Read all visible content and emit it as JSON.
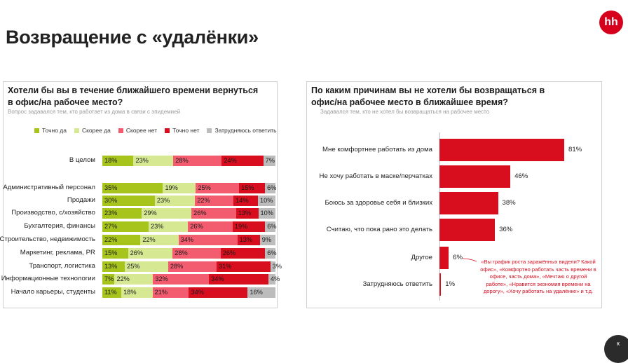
{
  "page": {
    "title": "Возвращение с «удалёнки»",
    "logo_text": "hh",
    "corner_text": "к"
  },
  "colors": {
    "accent": "#d6001c",
    "tochno_da": "#a6c41c",
    "skoree_da": "#d6e892",
    "skoree_net": "#f25c6e",
    "tochno_net": "#d80d1e",
    "zatrudnyayus": "#bcbcbc"
  },
  "chart_data": [
    {
      "type": "bar",
      "stacked": true,
      "orientation": "horizontal",
      "title": "Хотели бы вы в течение ближайшего времени вернуться в офис/на рабочее место?",
      "title_line1": "Хотели бы вы в течение ближайшего времени вернуться",
      "title_line2": "в офис/на рабочее место?",
      "subtitle": "Вопрос задавался тем, кто работает из дома в связи с эпидемией",
      "legend_position": "top",
      "categories": [
        "В целом",
        "Административный персонал",
        "Продажи",
        "Производство, с/хозяйство",
        "Бухгалтерия, финансы",
        "Строительство, недвижимость",
        "Маркетинг, реклама, PR",
        "Транспорт, логистика",
        "Информационные технологии",
        "Начало карьеры, студенты"
      ],
      "series": [
        {
          "name": "Точно да",
          "values": [
            18,
            35,
            30,
            23,
            27,
            22,
            15,
            13,
            7,
            11
          ],
          "labels": [
            "18%",
            "35%",
            "30%",
            "23%",
            "27%",
            "22%",
            "15%",
            "13%",
            "7%",
            "11%"
          ]
        },
        {
          "name": "Скорее да",
          "values": [
            23,
            19,
            23,
            29,
            23,
            22,
            26,
            25,
            22,
            18
          ],
          "labels": [
            "23%",
            "19%",
            "23%",
            "29%",
            "23%",
            "22%",
            "26%",
            "25%",
            "22%",
            "18%"
          ]
        },
        {
          "name": "Скорее нет",
          "values": [
            28,
            25,
            22,
            26,
            26,
            34,
            28,
            28,
            32,
            21
          ],
          "labels": [
            "28%",
            "25%",
            "22%",
            "26%",
            "26%",
            "34%",
            "28%",
            "28%",
            "32%",
            "21%"
          ]
        },
        {
          "name": "Точно нет",
          "values": [
            24,
            15,
            14,
            13,
            19,
            13,
            26,
            31,
            34,
            34
          ],
          "labels": [
            "24%",
            "15%",
            "14%",
            "13%",
            "19%",
            "13%",
            "26%",
            "31%",
            "34%",
            "34%"
          ]
        },
        {
          "name": "Затрудняюсь ответить",
          "values": [
            7,
            6,
            10,
            10,
            6,
            9,
            6,
            3,
            4,
            16
          ],
          "labels": [
            "7%",
            "6%",
            "10%",
            "10%",
            "6%",
            "9%",
            "6%",
            "3%",
            "4%",
            "16%"
          ]
        }
      ]
    },
    {
      "type": "bar",
      "orientation": "horizontal",
      "title": "По каким причинам вы не хотели бы возвращаться в офис/на рабочее место в ближайшее время?",
      "title_line1": "По каким причинам вы не хотели бы возвращаться в",
      "title_line2": "офис/на рабочее место в ближайшее время?",
      "subtitle": "Задавался тем, кто не хотел бы возвращаться на рабочее место",
      "categories": [
        "Мне комфортнее работать из дома",
        "Не хочу работать в маске/перчатках",
        "Боюсь за здоровье себя и близких",
        "Считаю, что пока рано это делать",
        "Другое",
        "Затрудняюсь ответить"
      ],
      "values": [
        81,
        46,
        38,
        36,
        6,
        1
      ],
      "labels": [
        "81%",
        "46%",
        "38%",
        "36%",
        "6%",
        "1%"
      ],
      "annotation": "«Вы график роста заражённых видели? Какой офис», «Комфортно работать часть времени в офисе, часть дома», «Мечтаю о другой работе», «Нравится экономия времени на дорогу», «Хочу работать на удалёнке» и т.д."
    }
  ]
}
